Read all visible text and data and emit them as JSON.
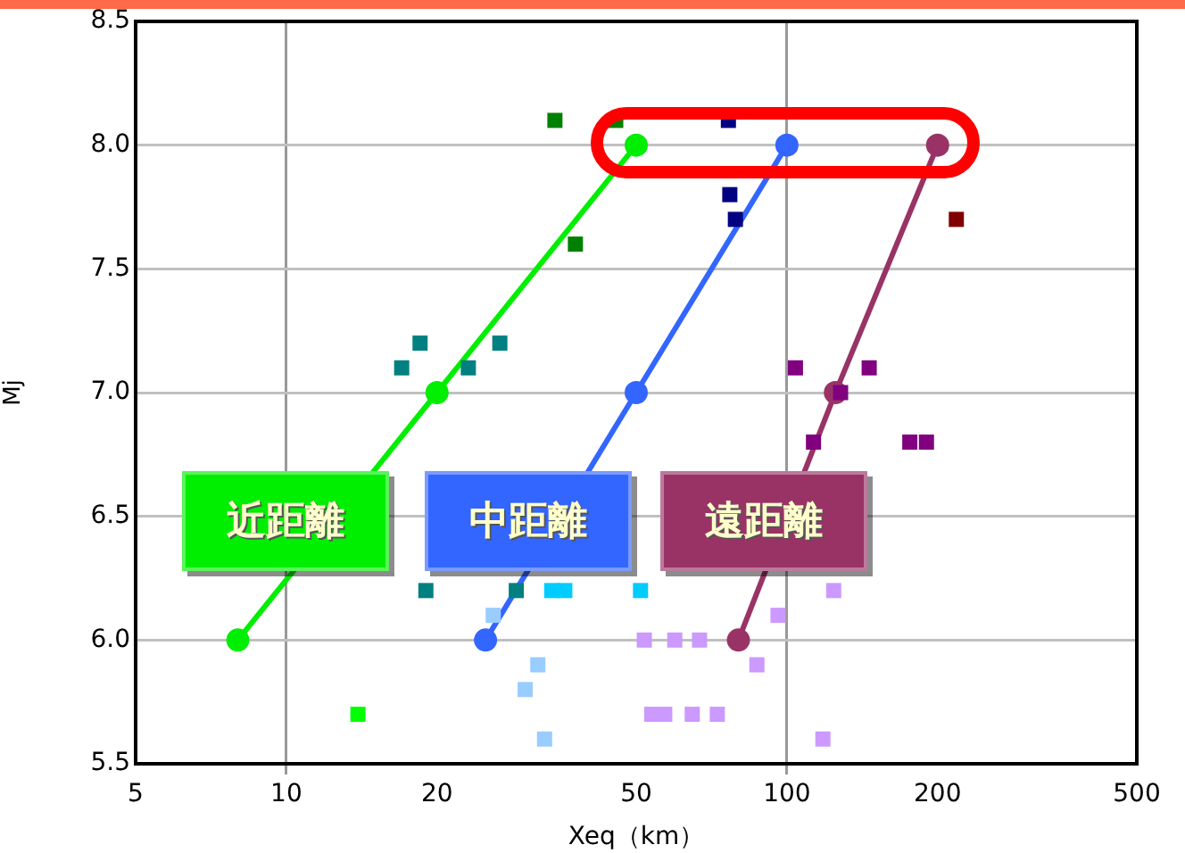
{
  "chart_data": {
    "type": "scatter",
    "xlabel": "Xeq（km）",
    "ylabel": "Mj",
    "log": "x",
    "grid": true,
    "legend": false,
    "xlim": [
      5,
      500
    ],
    "xticks": [
      5,
      10,
      20,
      50,
      100,
      200,
      500
    ],
    "ylim": [
      5.5,
      8.5
    ],
    "yticks": [
      {
        "value": 5.5,
        "label": "5.5"
      },
      {
        "value": 6,
        "label": "6.0"
      },
      {
        "value": 6.5,
        "label": "6.5"
      },
      {
        "value": 7,
        "label": "7.0"
      },
      {
        "value": 7.5,
        "label": "7.5"
      },
      {
        "value": 8,
        "label": "8.0"
      },
      {
        "value": 8.5,
        "label": "8.5"
      }
    ],
    "series": [
      {
        "type": "scatter",
        "marker": "square",
        "color": "#008000",
        "x": [
          34.4,
          45.5,
          37.8
        ],
        "values": [
          8.1,
          8.1,
          7.6
        ]
      },
      {
        "type": "scatter",
        "marker": "square",
        "color": "#008080",
        "x": [
          18.5,
          26.7,
          17,
          23.1,
          19,
          28.8
        ],
        "values": [
          7.2,
          7.2,
          7.1,
          7.1,
          6.2,
          6.2
        ]
      },
      {
        "type": "scatter",
        "marker": "square",
        "color": "#00ccff",
        "x": [
          33.9,
          36,
          51
        ],
        "values": [
          6.2,
          6.2,
          6.2
        ]
      },
      {
        "type": "scatter",
        "marker": "square",
        "color": "#99ccff",
        "x": [
          25.9,
          31.8,
          30,
          32.8
        ],
        "values": [
          6.1,
          5.9,
          5.8,
          5.6
        ]
      },
      {
        "type": "scatter",
        "marker": "square",
        "color": "#cc99ff",
        "x": [
          51.9,
          59.7,
          66.9,
          53.7,
          57,
          64.7,
          72.6,
          87.1,
          96,
          124,
          118
        ],
        "values": [
          6,
          6,
          6,
          5.7,
          5.7,
          5.7,
          5.7,
          5.9,
          6.1,
          6.2,
          5.6
        ]
      },
      {
        "type": "scatter",
        "marker": "square",
        "color": "#800080",
        "x": [
          104,
          146,
          128,
          113,
          176,
          190
        ],
        "values": [
          7.1,
          7.1,
          7,
          6.8,
          6.8,
          6.8
        ]
      },
      {
        "type": "scatter",
        "marker": "square",
        "color": "#000080",
        "x": [
          76.4,
          76.9,
          78.9
        ],
        "values": [
          8.1,
          7.8,
          7.7
        ]
      },
      {
        "type": "scatter",
        "marker": "square",
        "color": "#800000",
        "x": [
          218
        ],
        "values": [
          7.7
        ]
      },
      {
        "type": "scatter",
        "marker": "square",
        "color": "#00ff00",
        "x": [
          13.9
        ],
        "values": [
          5.7
        ]
      },
      {
        "type": "line",
        "marker": "circle",
        "name": "近距離",
        "color": "#00ee00",
        "x": [
          8,
          20,
          50
        ],
        "values": [
          6,
          7,
          8
        ]
      },
      {
        "type": "line",
        "marker": "circle",
        "name": "中距離",
        "color": "#3366ff",
        "x": [
          25,
          50,
          100
        ],
        "values": [
          6,
          7,
          8
        ]
      },
      {
        "type": "line",
        "marker": "circle",
        "name": "遠距離",
        "color": "#993366",
        "x": [
          80,
          125,
          200
        ],
        "values": [
          6,
          7,
          8
        ]
      }
    ]
  }
}
